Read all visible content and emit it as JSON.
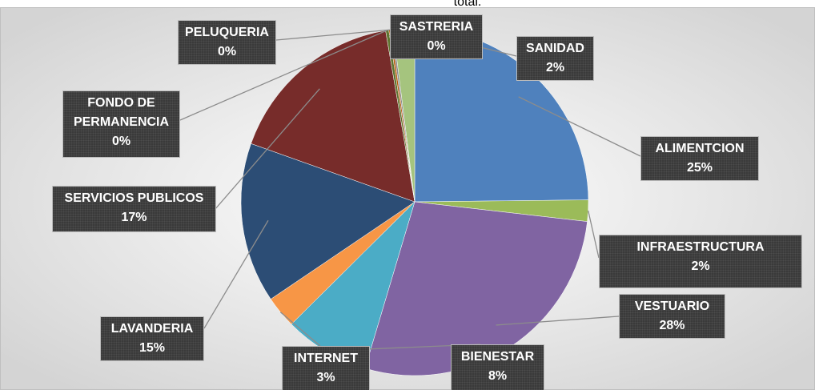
{
  "chart_data": {
    "type": "pie",
    "title": "total.",
    "categories": [
      "ALIMENTCION",
      "INFRAESTRUCTURA",
      "VESTUARIO",
      "BIENESTAR",
      "INTERNET",
      "LAVANDERIA",
      "SERVICIOS PUBLICOS",
      "FONDO DE PERMANENCIA",
      "PELUQUERIA",
      "SASTRERIA",
      "SANIDAD"
    ],
    "values": [
      25,
      2,
      28,
      8,
      3,
      15,
      17,
      0.3,
      0.2,
      0.2,
      2
    ],
    "value_labels": [
      "25%",
      "2%",
      "28%",
      "8%",
      "3%",
      "15%",
      "17%",
      "0%",
      "0%",
      "0%",
      "2%"
    ],
    "colors": [
      "#4f81bd",
      "#9bbb59",
      "#8064a2",
      "#4bacc6",
      "#f79646",
      "#2c4d75",
      "#772c2a",
      "#5f7530",
      "#b65708",
      "#8c8c8c",
      "#a5c47e"
    ],
    "legend": false
  }
}
